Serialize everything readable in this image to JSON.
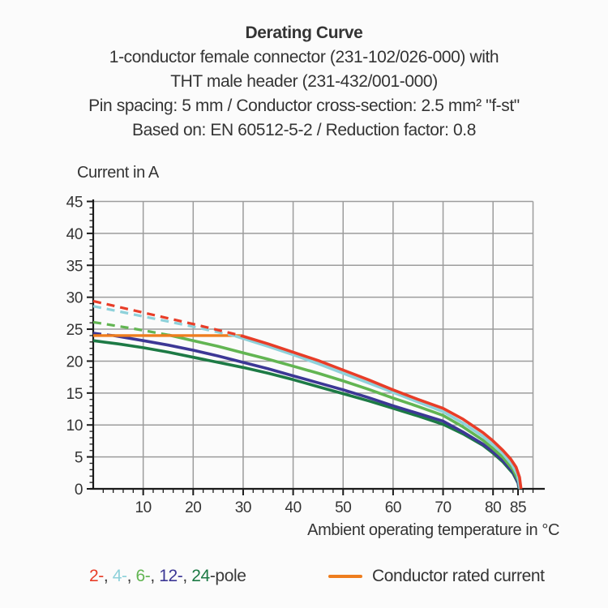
{
  "header": {
    "title": "Derating Curve",
    "line2": "1-conductor female connector (231-102/026-000) with",
    "line3": "THT male header (231-432/001-000)",
    "line4": "Pin spacing: 5 mm / Conductor cross-section: 2.5 mm² \"f-st\"",
    "line5": "Based on: EN 60512-5-2 / Reduction factor: 0.8"
  },
  "chart_data": {
    "type": "line",
    "title": "Derating Curve",
    "ylabel": "Current in A",
    "xlabel": "Ambient operating temperature in °C",
    "xlim": [
      0,
      88
    ],
    "ylim": [
      0,
      45
    ],
    "x_major_ticks": [
      10,
      20,
      30,
      40,
      50,
      60,
      70,
      80,
      85
    ],
    "y_major_ticks": [
      0,
      5,
      10,
      15,
      20,
      25,
      30,
      35,
      40,
      45
    ],
    "x_minor_step": 2,
    "y_minor_step": 1,
    "grid": "on",
    "grid_color": "#9c9c9c",
    "axis_color": "#1a1a1a",
    "legend_position": "bottom",
    "rated_current": {
      "label": "Conductor rated current",
      "value_a": 24,
      "x_range": [
        0,
        29.5
      ],
      "color": "#ee7d1e"
    },
    "series": [
      {
        "name": "2-pole",
        "color": "#e83d28",
        "dashed": [
          [
            0,
            29.4
          ],
          [
            10,
            27.6
          ],
          [
            20,
            25.8
          ],
          [
            29.5,
            24.0
          ]
        ],
        "solid": [
          [
            29.5,
            24.0
          ],
          [
            35,
            22.7
          ],
          [
            40,
            21.4
          ],
          [
            45,
            20.1
          ],
          [
            50,
            18.6
          ],
          [
            55,
            17.1
          ],
          [
            60,
            15.5
          ],
          [
            65,
            14.0
          ],
          [
            70,
            12.6
          ],
          [
            74,
            10.9
          ],
          [
            78,
            8.8
          ],
          [
            80,
            7.5
          ],
          [
            82,
            6.0
          ],
          [
            83.5,
            4.7
          ],
          [
            84.6,
            3.4
          ],
          [
            85.3,
            1.8
          ],
          [
            85.6,
            0
          ]
        ]
      },
      {
        "name": "4-pole",
        "color": "#8ed1da",
        "dashed": [
          [
            0,
            28.6
          ],
          [
            10,
            27.0
          ],
          [
            20,
            25.4
          ],
          [
            28.5,
            23.9
          ]
        ],
        "solid": [
          [
            28.5,
            23.9
          ],
          [
            35,
            22.3
          ],
          [
            40,
            21.0
          ],
          [
            45,
            19.6
          ],
          [
            50,
            18.1
          ],
          [
            55,
            16.6
          ],
          [
            60,
            15.1
          ],
          [
            65,
            13.6
          ],
          [
            70,
            12.1
          ],
          [
            74,
            10.3
          ],
          [
            78,
            8.2
          ],
          [
            80,
            6.9
          ],
          [
            82,
            5.5
          ],
          [
            83.8,
            3.8
          ],
          [
            84.9,
            2.2
          ],
          [
            85.4,
            0
          ]
        ]
      },
      {
        "name": "6-pole",
        "color": "#62b552",
        "dashed": [
          [
            0,
            26.1
          ],
          [
            8,
            25.1
          ],
          [
            15,
            24.1
          ]
        ],
        "solid": [
          [
            15,
            24.1
          ],
          [
            20,
            23.2
          ],
          [
            25,
            22.3
          ],
          [
            30,
            21.3
          ],
          [
            35,
            20.3
          ],
          [
            40,
            19.2
          ],
          [
            45,
            18.1
          ],
          [
            50,
            16.9
          ],
          [
            55,
            15.6
          ],
          [
            60,
            14.2
          ],
          [
            65,
            12.9
          ],
          [
            70,
            11.5
          ],
          [
            74,
            9.7
          ],
          [
            78,
            7.6
          ],
          [
            80,
            6.3
          ],
          [
            82,
            4.9
          ],
          [
            84,
            3.0
          ],
          [
            85.1,
            1.2
          ],
          [
            85.4,
            0
          ]
        ]
      },
      {
        "name": "12-pole",
        "color": "#3c3795",
        "dashed": [
          [
            0,
            24.4
          ],
          [
            4,
            24.0
          ]
        ],
        "solid": [
          [
            4,
            24.0
          ],
          [
            10,
            23.2
          ],
          [
            15,
            22.5
          ],
          [
            20,
            21.7
          ],
          [
            25,
            20.8
          ],
          [
            30,
            19.8
          ],
          [
            35,
            18.8
          ],
          [
            40,
            17.7
          ],
          [
            45,
            16.6
          ],
          [
            50,
            15.5
          ],
          [
            55,
            14.3
          ],
          [
            60,
            13.0
          ],
          [
            65,
            11.8
          ],
          [
            70,
            10.6
          ],
          [
            74,
            8.9
          ],
          [
            78,
            7.0
          ],
          [
            80,
            5.8
          ],
          [
            82,
            4.4
          ],
          [
            84,
            2.6
          ],
          [
            85,
            1.0
          ],
          [
            85.3,
            0
          ]
        ]
      },
      {
        "name": "24-pole",
        "color": "#1d7a45",
        "dashed": [],
        "solid": [
          [
            0,
            23.2
          ],
          [
            5,
            22.7
          ],
          [
            10,
            22.1
          ],
          [
            15,
            21.4
          ],
          [
            20,
            20.6
          ],
          [
            25,
            19.8
          ],
          [
            30,
            19.0
          ],
          [
            35,
            18.1
          ],
          [
            40,
            17.1
          ],
          [
            45,
            16.0
          ],
          [
            50,
            14.9
          ],
          [
            55,
            13.8
          ],
          [
            60,
            12.6
          ],
          [
            65,
            11.4
          ],
          [
            70,
            10.1
          ],
          [
            74,
            8.6
          ],
          [
            78,
            6.8
          ],
          [
            80,
            5.6
          ],
          [
            82,
            4.2
          ],
          [
            84,
            2.4
          ],
          [
            85,
            0.9
          ],
          [
            85.2,
            0
          ]
        ]
      }
    ]
  },
  "legend": {
    "pole_pieces": [
      {
        "text": "2-",
        "color": "#e83d28"
      },
      {
        "text": ", ",
        "color": "#3a3a3a"
      },
      {
        "text": "4-",
        "color": "#8ed1da"
      },
      {
        "text": ", ",
        "color": "#3a3a3a"
      },
      {
        "text": "6-",
        "color": "#62b552"
      },
      {
        "text": ", ",
        "color": "#3a3a3a"
      },
      {
        "text": "12-",
        "color": "#3c3795"
      },
      {
        "text": ", ",
        "color": "#3a3a3a"
      },
      {
        "text": "24",
        "color": "#1d7a45"
      },
      {
        "text": "-pole",
        "color": "#3a3a3a"
      }
    ],
    "rated_label": "Conductor rated current"
  }
}
